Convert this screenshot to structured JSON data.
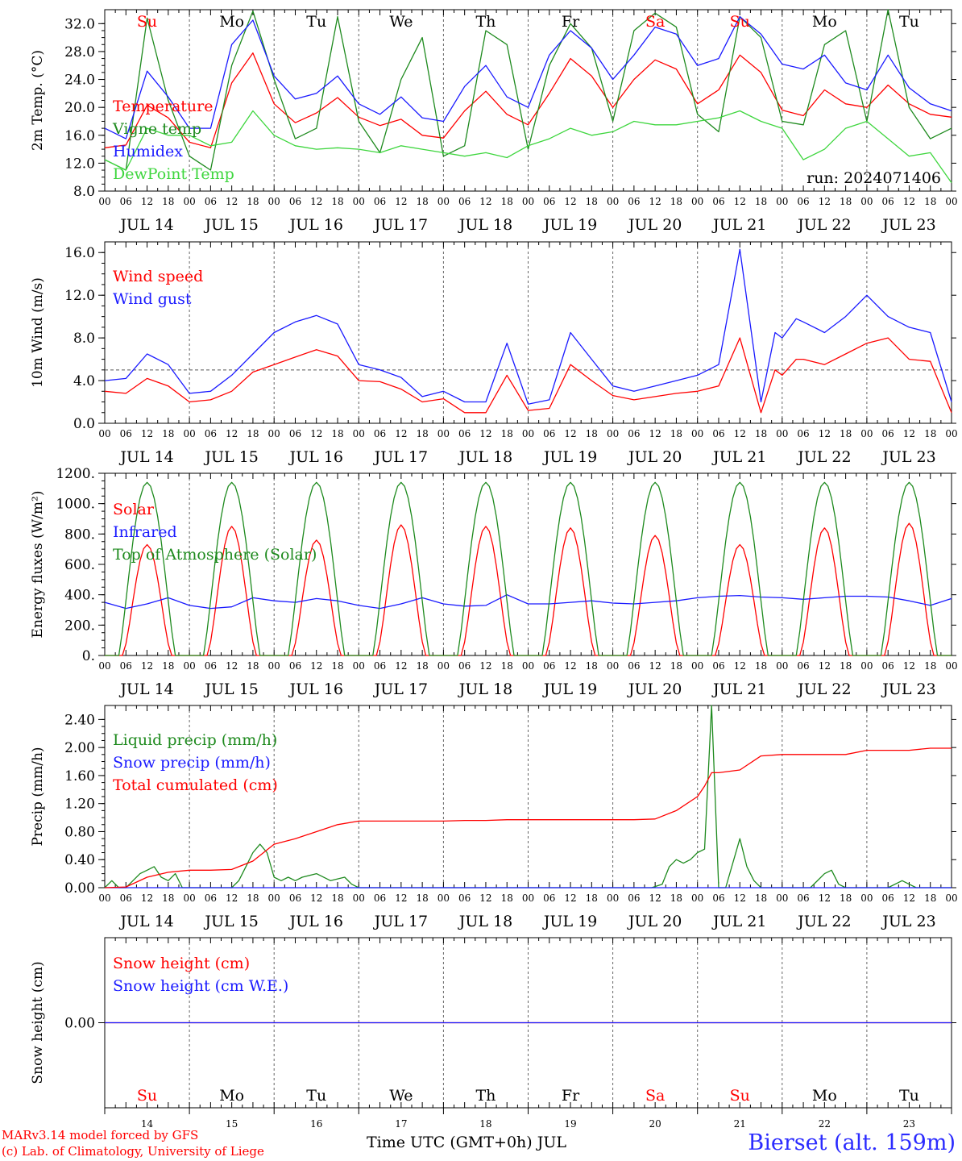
{
  "colors": {
    "red": "#ff0000",
    "green": "#1e8a1e",
    "blue": "#1a1aff",
    "lightgreen": "#3ed63e",
    "purple": "#7b2fa0",
    "axis": "#000000",
    "grid": "#666666"
  },
  "x_axis": {
    "hour_labels": [
      "00",
      "06",
      "12",
      "18"
    ],
    "dates": [
      "JUL 14",
      "JUL 15",
      "JUL 16",
      "JUL 17",
      "JUL 18",
      "JUL 19",
      "JUL 20",
      "JUL 21",
      "JUL 22",
      "JUL 23"
    ],
    "weekdays": [
      "Su",
      "Mo",
      "Tu",
      "We",
      "Th",
      "Fr",
      "Sa",
      "Su",
      "Mo",
      "Tu"
    ],
    "weekday_colors": [
      "#ff0000",
      "#000000",
      "#000000",
      "#000000",
      "#000000",
      "#000000",
      "#ff0000",
      "#ff0000",
      "#000000",
      "#000000"
    ],
    "day_numbers": [
      "14",
      "15",
      "16",
      "17",
      "18",
      "19",
      "20",
      "21",
      "22",
      "23"
    ]
  },
  "footer": {
    "model": "MARv3.14 model forced by GFS",
    "lab": "(c) Lab. of Climatology, University of Liege",
    "axis_title": "Time UTC (GMT+0h) JUL",
    "station": "Bierset (alt. 159m)"
  },
  "chart_data": [
    {
      "type": "line",
      "ylabel": "2m Temp. (°C)",
      "ylim": [
        8,
        34
      ],
      "yticks": [
        "8.0",
        "12.0",
        "16.0",
        "20.0",
        "24.0",
        "28.0",
        "32.0"
      ],
      "annotation": "run: 2024071406",
      "series": [
        {
          "name": "Temperature",
          "color": "#ff0000",
          "x": [
            0,
            6,
            12,
            18,
            24,
            30,
            36,
            42,
            48,
            54,
            60,
            66,
            72,
            78,
            84,
            90,
            96,
            102,
            108,
            114,
            120,
            126,
            132,
            138,
            144,
            150,
            156,
            162,
            168,
            174,
            180,
            186,
            192,
            198,
            204,
            210,
            216,
            222,
            228,
            234,
            240
          ],
          "y": [
            14.2,
            14.6,
            20.3,
            18.5,
            15.0,
            14.2,
            23.5,
            27.8,
            20.5,
            17.8,
            19.2,
            21.4,
            18.6,
            17.4,
            18.3,
            16.0,
            15.6,
            19.5,
            22.3,
            19.0,
            17.5,
            22.0,
            27.0,
            24.5,
            20.0,
            24.0,
            26.8,
            25.5,
            20.5,
            22.5,
            27.5,
            25.0,
            19.6,
            18.8,
            22.5,
            20.5,
            20.0,
            23.2,
            20.5,
            19.0,
            18.6
          ]
        },
        {
          "name": "Vigne temp",
          "color": "#1e8a1e",
          "x": [
            0,
            6,
            12,
            18,
            24,
            30,
            36,
            42,
            48,
            54,
            60,
            66,
            72,
            78,
            84,
            90,
            96,
            102,
            108,
            114,
            120,
            126,
            132,
            138,
            144,
            150,
            156,
            162,
            168,
            174,
            180,
            186,
            192,
            198,
            204,
            210,
            216,
            222,
            228,
            234,
            240
          ],
          "y": [
            12.5,
            11.0,
            32.8,
            21.0,
            13.0,
            11.0,
            26.0,
            33.8,
            24.0,
            15.5,
            17.0,
            33.0,
            18.0,
            13.5,
            24.0,
            30.0,
            13.0,
            14.5,
            31.0,
            29.0,
            14.0,
            26.0,
            32.0,
            28.5,
            18.0,
            31.0,
            33.5,
            31.5,
            19.0,
            16.5,
            33.0,
            30.0,
            18.0,
            17.5,
            29.0,
            31.0,
            18.0,
            34.0,
            20.0,
            15.5,
            17.0
          ]
        },
        {
          "name": "Humidex",
          "color": "#1a1aff",
          "x": [
            0,
            6,
            12,
            18,
            24,
            30,
            36,
            42,
            48,
            54,
            60,
            66,
            72,
            78,
            84,
            90,
            96,
            102,
            108,
            114,
            120,
            126,
            132,
            138,
            144,
            150,
            156,
            162,
            168,
            174,
            180,
            186,
            192,
            198,
            204,
            210,
            216,
            222,
            228,
            234,
            240
          ],
          "y": [
            17.0,
            15.5,
            25.2,
            21.5,
            17.0,
            17.0,
            29.0,
            32.5,
            24.5,
            21.2,
            22.0,
            24.5,
            20.5,
            19.0,
            21.5,
            18.5,
            18.0,
            23.0,
            26.0,
            21.5,
            20.0,
            27.5,
            31.0,
            28.5,
            24.0,
            27.5,
            31.5,
            30.5,
            26.0,
            27.0,
            33.0,
            30.5,
            26.2,
            25.5,
            27.5,
            23.5,
            22.5,
            27.5,
            22.8,
            20.5,
            19.5
          ]
        },
        {
          "name": "DewPoint Temp",
          "color": "#3ed63e",
          "x": [
            0,
            6,
            12,
            18,
            24,
            30,
            36,
            42,
            48,
            54,
            60,
            66,
            72,
            78,
            84,
            90,
            96,
            102,
            108,
            114,
            120,
            126,
            132,
            138,
            144,
            150,
            156,
            162,
            168,
            174,
            180,
            186,
            192,
            198,
            204,
            210,
            216,
            222,
            228,
            234,
            240
          ],
          "y": [
            12.5,
            11.0,
            17.0,
            16.0,
            16.0,
            14.5,
            15.0,
            19.5,
            16.0,
            14.5,
            14.0,
            14.2,
            14.0,
            13.5,
            14.5,
            14.0,
            13.5,
            13.0,
            13.5,
            12.8,
            14.5,
            15.5,
            17.0,
            16.0,
            16.5,
            18.0,
            17.5,
            17.5,
            18.0,
            18.5,
            19.5,
            18.0,
            17.0,
            12.5,
            14.0,
            17.0,
            18.0,
            15.5,
            13.0,
            13.5,
            9.2
          ]
        }
      ]
    },
    {
      "type": "line",
      "ylabel": "10m Wind (m/s)",
      "ylim": [
        0,
        17
      ],
      "yticks": [
        "0.0",
        "4.0",
        "8.0",
        "12.0",
        "16.0"
      ],
      "reference_line": 5.0,
      "series": [
        {
          "name": "Wind speed",
          "color": "#ff0000",
          "x": [
            0,
            6,
            12,
            18,
            24,
            30,
            36,
            42,
            48,
            54,
            60,
            66,
            72,
            78,
            84,
            90,
            96,
            102,
            108,
            114,
            120,
            126,
            132,
            138,
            144,
            150,
            156,
            162,
            168,
            174,
            180,
            186,
            190,
            192,
            196,
            198,
            204,
            210,
            216,
            222,
            228,
            234,
            240
          ],
          "y": [
            3.0,
            2.8,
            4.2,
            3.5,
            2.0,
            2.2,
            3.0,
            4.8,
            5.5,
            6.2,
            6.9,
            6.3,
            4.0,
            3.9,
            3.2,
            2.0,
            2.3,
            1.0,
            1.0,
            4.5,
            1.2,
            1.4,
            5.5,
            4.0,
            2.6,
            2.2,
            2.5,
            2.8,
            3.0,
            3.5,
            8.0,
            1.0,
            5.0,
            4.5,
            6.0,
            6.0,
            5.5,
            6.5,
            7.5,
            8.0,
            6.0,
            5.8,
            1.0
          ]
        },
        {
          "name": "Wind gust",
          "color": "#1a1aff",
          "x": [
            0,
            6,
            12,
            18,
            24,
            30,
            36,
            42,
            48,
            54,
            60,
            66,
            72,
            78,
            84,
            90,
            96,
            102,
            108,
            114,
            120,
            126,
            132,
            138,
            144,
            150,
            156,
            162,
            168,
            174,
            180,
            186,
            190,
            192,
            196,
            198,
            204,
            210,
            216,
            222,
            228,
            234,
            240
          ],
          "y": [
            4.0,
            4.2,
            6.5,
            5.5,
            2.8,
            3.0,
            4.5,
            6.5,
            8.5,
            9.5,
            10.1,
            9.3,
            5.5,
            5.0,
            4.3,
            2.5,
            3.0,
            2.0,
            2.0,
            7.5,
            1.8,
            2.2,
            8.5,
            6.0,
            3.5,
            3.0,
            3.5,
            4.0,
            4.5,
            5.5,
            16.3,
            2.0,
            8.5,
            8.0,
            9.8,
            9.5,
            8.5,
            10.0,
            12.0,
            10.0,
            9.0,
            8.5,
            2.0
          ]
        }
      ]
    },
    {
      "type": "line",
      "ylabel": "Energy fluxes (W/m²)",
      "ylim": [
        0,
        1200
      ],
      "yticks": [
        "0.",
        "200.",
        "400.",
        "600.",
        "800.",
        "1000.",
        "1200."
      ],
      "series": [
        {
          "name": "Solar",
          "color": "#ff0000",
          "day_peaks": [
            730,
            850,
            760,
            860,
            850,
            840,
            790,
            730,
            840,
            870
          ]
        },
        {
          "name": "Infrared",
          "color": "#1a1aff",
          "x": [
            0,
            6,
            12,
            18,
            24,
            30,
            36,
            42,
            48,
            54,
            60,
            66,
            72,
            78,
            84,
            90,
            96,
            102,
            108,
            114,
            120,
            126,
            132,
            138,
            144,
            150,
            156,
            162,
            168,
            174,
            180,
            186,
            192,
            198,
            204,
            210,
            216,
            222,
            228,
            234,
            240
          ],
          "y": [
            350,
            310,
            340,
            380,
            330,
            310,
            320,
            380,
            360,
            350,
            375,
            360,
            330,
            310,
            340,
            380,
            340,
            325,
            330,
            400,
            340,
            340,
            350,
            360,
            345,
            340,
            350,
            360,
            380,
            390,
            395,
            385,
            380,
            370,
            380,
            390,
            390,
            385,
            360,
            330,
            375
          ]
        },
        {
          "name": "Top of Atmosphere (Solar)",
          "color": "#1e8a1e",
          "peak": 1140
        }
      ]
    },
    {
      "type": "line",
      "ylabel": "Precip (mm/h)",
      "ylim": [
        0,
        2.6
      ],
      "yticks": [
        "0.00",
        "0.40",
        "0.80",
        "1.20",
        "1.60",
        "2.00",
        "2.40"
      ],
      "series": [
        {
          "name": "Liquid precip (mm/h)",
          "color": "#1e8a1e",
          "x": [
            0,
            2,
            4,
            6,
            8,
            10,
            12,
            14,
            16,
            18,
            20,
            22,
            24,
            30,
            36,
            38,
            40,
            42,
            44,
            46,
            48,
            50,
            52,
            54,
            56,
            60,
            64,
            68,
            70,
            72,
            74,
            80,
            90,
            100,
            110,
            120,
            130,
            140,
            150,
            155,
            158,
            160,
            162,
            164,
            166,
            168,
            170,
            172,
            174,
            176,
            180,
            182,
            184,
            186,
            190,
            200,
            204,
            206,
            208,
            210,
            216,
            222,
            226,
            228,
            230,
            232,
            240
          ],
          "y": [
            0,
            0.1,
            0,
            0,
            0.1,
            0.2,
            0.25,
            0.3,
            0.15,
            0.1,
            0.2,
            0,
            0,
            0,
            0,
            0.1,
            0.3,
            0.5,
            0.62,
            0.5,
            0.15,
            0.1,
            0.15,
            0.1,
            0.15,
            0.2,
            0.1,
            0.15,
            0.05,
            0,
            0,
            0,
            0,
            0,
            0,
            0,
            0,
            0,
            0,
            0,
            0.05,
            0.3,
            0.4,
            0.35,
            0.4,
            0.5,
            0.55,
            2.6,
            0,
            0,
            0.7,
            0.3,
            0.1,
            0,
            0,
            0,
            0.2,
            0.25,
            0.05,
            0,
            0,
            0,
            0.1,
            0.05,
            0,
            0,
            0
          ]
        },
        {
          "name": "Snow precip (mm/h)",
          "color": "#1a1aff",
          "x": [
            0,
            240
          ],
          "y": [
            0,
            0
          ]
        },
        {
          "name": "Total cumulated (cm)",
          "color": "#ff0000",
          "x": [
            0,
            6,
            12,
            18,
            24,
            30,
            36,
            42,
            48,
            54,
            60,
            66,
            72,
            78,
            84,
            90,
            96,
            102,
            108,
            114,
            120,
            126,
            132,
            138,
            144,
            150,
            156,
            162,
            168,
            170,
            172,
            174,
            180,
            186,
            192,
            198,
            204,
            210,
            216,
            222,
            228,
            234,
            240
          ],
          "y": [
            0,
            0.01,
            0.15,
            0.22,
            0.25,
            0.25,
            0.26,
            0.38,
            0.62,
            0.7,
            0.8,
            0.9,
            0.95,
            0.95,
            0.95,
            0.95,
            0.95,
            0.96,
            0.96,
            0.97,
            0.97,
            0.97,
            0.97,
            0.97,
            0.97,
            0.97,
            0.98,
            1.1,
            1.3,
            1.45,
            1.64,
            1.64,
            1.68,
            1.88,
            1.9,
            1.9,
            1.9,
            1.9,
            1.96,
            1.96,
            1.96,
            1.99,
            1.99
          ]
        }
      ]
    },
    {
      "type": "line",
      "ylabel": "Snow height (cm)",
      "ylim": [
        -1,
        1
      ],
      "yticks": [
        "0.00"
      ],
      "series": [
        {
          "name": "Snow height (cm)",
          "color": "#ff0000",
          "x": [
            0,
            240
          ],
          "y": [
            0,
            0
          ]
        },
        {
          "name": "Snow height (cm W.E.)",
          "color": "#1a1aff",
          "x": [
            0,
            240
          ],
          "y": [
            0,
            0
          ]
        }
      ]
    }
  ]
}
